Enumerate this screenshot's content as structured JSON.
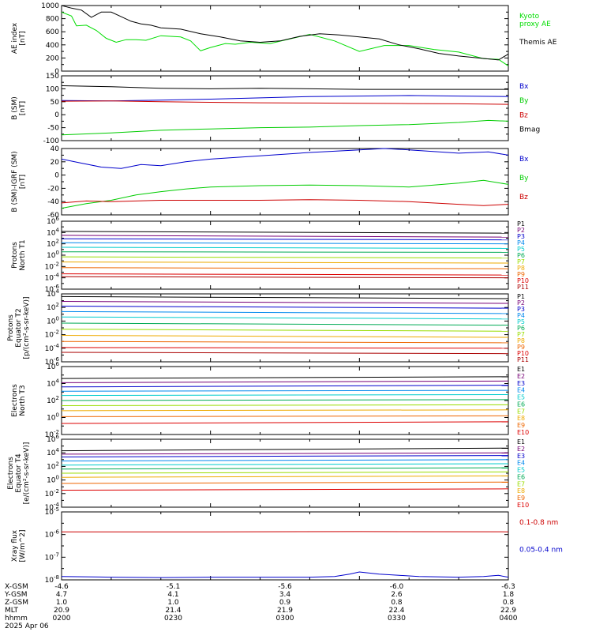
{
  "chart_data": [
    {
      "type": "line",
      "ylabel": "AE index\n[nT]",
      "ylim": [
        0,
        1000
      ],
      "yticks": [
        "1000",
        "800",
        "600",
        "400",
        "200",
        "0"
      ],
      "series": [
        {
          "name": "Kyoto\nproxy AE",
          "color": "#00dd00",
          "x": [
            0,
            2,
            3,
            5,
            7,
            9,
            11,
            13,
            15,
            17,
            20,
            22,
            24,
            26,
            28,
            30,
            33,
            35,
            38,
            42,
            46,
            50,
            55,
            60,
            65,
            70,
            75,
            80,
            85,
            88,
            90
          ],
          "values": [
            900,
            840,
            690,
            700,
            620,
            500,
            440,
            480,
            480,
            470,
            540,
            530,
            520,
            460,
            310,
            360,
            420,
            410,
            440,
            420,
            490,
            560,
            460,
            300,
            390,
            390,
            330,
            290,
            190,
            180,
            80
          ]
        },
        {
          "name": "Themis AE",
          "color": "#000000",
          "x": [
            0,
            2,
            4,
            6,
            8,
            10,
            12,
            14,
            16,
            18,
            20,
            24,
            28,
            32,
            36,
            40,
            44,
            48,
            52,
            56,
            60,
            64,
            68,
            72,
            76,
            80,
            84,
            88,
            90
          ],
          "values": [
            1000,
            960,
            930,
            820,
            900,
            900,
            830,
            760,
            720,
            700,
            660,
            640,
            570,
            520,
            460,
            440,
            460,
            530,
            570,
            550,
            520,
            490,
            400,
            340,
            270,
            230,
            200,
            170,
            260
          ]
        }
      ]
    },
    {
      "type": "line",
      "ylabel": "B (SM)\n[nT]",
      "ylim": [
        -100,
        150
      ],
      "yticks": [
        "150",
        "100",
        "50",
        "0",
        "-50",
        "-100"
      ],
      "series": [
        {
          "name": "Bx",
          "color": "#0000cc",
          "x": [
            0,
            10,
            20,
            30,
            40,
            50,
            60,
            70,
            80,
            90
          ],
          "values": [
            55,
            53,
            56,
            60,
            65,
            70,
            72,
            74,
            72,
            70
          ]
        },
        {
          "name": "By",
          "color": "#00cc00",
          "x": [
            0,
            10,
            20,
            30,
            40,
            50,
            60,
            70,
            80,
            86,
            90
          ],
          "values": [
            -78,
            -70,
            -60,
            -55,
            -50,
            -48,
            -42,
            -38,
            -30,
            -22,
            -25
          ]
        },
        {
          "name": "Bz",
          "color": "#cc0000",
          "x": [
            0,
            10,
            20,
            30,
            40,
            50,
            60,
            70,
            80,
            90
          ],
          "values": [
            52,
            53,
            50,
            48,
            46,
            45,
            44,
            43,
            42,
            40
          ]
        },
        {
          "name": "Bmag",
          "color": "#000000",
          "x": [
            0,
            10,
            20,
            30,
            40,
            50,
            60,
            70,
            80,
            90
          ],
          "values": [
            112,
            108,
            102,
            100,
            102,
            100,
            98,
            98,
            98,
            98
          ]
        }
      ]
    },
    {
      "type": "line",
      "ylabel": "B (SM)-IGRF (SM)\n[nT]",
      "ylim": [
        -60,
        40
      ],
      "yticks": [
        "40",
        "20",
        "0",
        "-20",
        "-40",
        "-60"
      ],
      "series": [
        {
          "name": "Bx",
          "color": "#0000cc",
          "x": [
            0,
            4,
            8,
            12,
            16,
            20,
            25,
            30,
            40,
            50,
            60,
            65,
            70,
            80,
            86,
            90
          ],
          "values": [
            24,
            18,
            12,
            10,
            16,
            14,
            20,
            24,
            29,
            34,
            38,
            40,
            38,
            33,
            35,
            30
          ]
        },
        {
          "name": "By",
          "color": "#00cc00",
          "x": [
            0,
            5,
            10,
            15,
            20,
            25,
            30,
            40,
            50,
            60,
            70,
            75,
            80,
            85,
            90
          ],
          "values": [
            -50,
            -43,
            -38,
            -30,
            -25,
            -21,
            -18,
            -16,
            -15,
            -16,
            -18,
            -15,
            -12,
            -8,
            -14
          ]
        },
        {
          "name": "Bz",
          "color": "#cc0000",
          "x": [
            0,
            5,
            10,
            20,
            30,
            40,
            50,
            60,
            70,
            80,
            85,
            90
          ],
          "values": [
            -42,
            -39,
            -40,
            -38,
            -38,
            -38,
            -37,
            -38,
            -40,
            -44,
            -46,
            -44
          ]
        }
      ]
    },
    {
      "type": "line",
      "ylabel": "Protons\nNorth T1",
      "yscale": "log",
      "ylim": [
        -6,
        6
      ],
      "yticks": [
        "10^6",
        "10^4",
        "10^2",
        "10^0",
        "10^-2",
        "10^-4",
        "10^-6"
      ],
      "series": [
        {
          "name": "P1",
          "color": "#000000",
          "x": [
            0,
            90
          ],
          "values": [
            4.2,
            3.9
          ]
        },
        {
          "name": "P2",
          "color": "#770077",
          "x": [
            0,
            90
          ],
          "values": [
            3.5,
            3.2
          ]
        },
        {
          "name": "P3",
          "color": "#0000cc",
          "x": [
            0,
            90
          ],
          "values": [
            2.9,
            2.7
          ]
        },
        {
          "name": "P4",
          "color": "#0088ee",
          "x": [
            0,
            90
          ],
          "values": [
            2.2,
            2.0
          ]
        },
        {
          "name": "P5",
          "color": "#00cccc",
          "x": [
            0,
            90
          ],
          "values": [
            1.4,
            1.2
          ]
        },
        {
          "name": "P6",
          "color": "#00aa55",
          "x": [
            0,
            90
          ],
          "values": [
            0.6,
            0.5
          ]
        },
        {
          "name": "P7",
          "color": "#99dd00",
          "x": [
            0,
            90
          ],
          "values": [
            -0.3,
            -0.5
          ]
        },
        {
          "name": "P8",
          "color": "#eeaa00",
          "x": [
            0,
            90
          ],
          "values": [
            -1.2,
            -1.4
          ]
        },
        {
          "name": "P9",
          "color": "#ee6600",
          "x": [
            0,
            90
          ],
          "values": [
            -2.2,
            -2.4
          ]
        },
        {
          "name": "P10",
          "color": "#dd0000",
          "x": [
            0,
            90
          ],
          "values": [
            -3.3,
            -3.5
          ]
        },
        {
          "name": "P11",
          "color": "#aa0000",
          "x": [
            0,
            90
          ],
          "values": [
            -3.8,
            -4.0
          ]
        }
      ]
    },
    {
      "type": "line",
      "ylabel": "Protons\nEquator T2\n[p/(cm²-s-sr-keV)]",
      "yscale": "log",
      "ylim": [
        -6,
        4
      ],
      "yticks": [
        "10^4",
        "10^2",
        "10^0",
        "10^-2",
        "10^-4",
        "10^-6"
      ],
      "series": [
        {
          "name": "P1",
          "color": "#000000",
          "x": [
            0,
            90
          ],
          "values": [
            3.6,
            3.3
          ]
        },
        {
          "name": "P2",
          "color": "#770077",
          "x": [
            0,
            90
          ],
          "values": [
            2.9,
            2.6
          ]
        },
        {
          "name": "P3",
          "color": "#0000cc",
          "x": [
            0,
            90
          ],
          "values": [
            2.2,
            1.9
          ]
        },
        {
          "name": "P4",
          "color": "#0088ee",
          "x": [
            0,
            90
          ],
          "values": [
            1.4,
            1.1
          ]
        },
        {
          "name": "P5",
          "color": "#00cccc",
          "x": [
            0,
            90
          ],
          "values": [
            0.6,
            0.3
          ]
        },
        {
          "name": "P6",
          "color": "#00aa55",
          "x": [
            0,
            90
          ],
          "values": [
            -0.3,
            -0.6
          ]
        },
        {
          "name": "P7",
          "color": "#99dd00",
          "x": [
            0,
            90
          ],
          "values": [
            -1.2,
            -1.5
          ]
        },
        {
          "name": "P8",
          "color": "#eeaa00",
          "x": [
            0,
            90
          ],
          "values": [
            -2.1,
            -2.4
          ]
        },
        {
          "name": "P9",
          "color": "#ee6600",
          "x": [
            0,
            90
          ],
          "values": [
            -3.0,
            -3.2
          ]
        },
        {
          "name": "P10",
          "color": "#dd0000",
          "x": [
            0,
            90
          ],
          "values": [
            -3.9,
            -4.0
          ]
        },
        {
          "name": "P11",
          "color": "#aa0000",
          "x": [
            0,
            90
          ],
          "values": [
            -4.6,
            -4.8
          ]
        }
      ]
    },
    {
      "type": "line",
      "ylabel": "Electrons\nNorth T3",
      "yscale": "log",
      "ylim": [
        -2,
        6
      ],
      "yticks": [
        "10^6",
        "10^4",
        "10^2",
        "10^0",
        "10^-2"
      ],
      "series": [
        {
          "name": "E1",
          "color": "#000000",
          "x": [
            0,
            90
          ],
          "values": [
            4.6,
            4.8
          ]
        },
        {
          "name": "E2",
          "color": "#770077",
          "x": [
            0,
            90
          ],
          "values": [
            4.1,
            4.3
          ]
        },
        {
          "name": "E3",
          "color": "#0000cc",
          "x": [
            0,
            90
          ],
          "values": [
            3.6,
            3.8
          ]
        },
        {
          "name": "E4",
          "color": "#0088ee",
          "x": [
            0,
            90
          ],
          "values": [
            3.1,
            3.2
          ]
        },
        {
          "name": "E5",
          "color": "#00cccc",
          "x": [
            0,
            90
          ],
          "values": [
            2.6,
            2.7
          ]
        },
        {
          "name": "E6",
          "color": "#00aa55",
          "x": [
            0,
            90
          ],
          "values": [
            2.0,
            2.1
          ]
        },
        {
          "name": "E7",
          "color": "#99dd00",
          "x": [
            0,
            90
          ],
          "values": [
            1.4,
            1.5
          ]
        },
        {
          "name": "E8",
          "color": "#eeaa00",
          "x": [
            0,
            90
          ],
          "values": [
            0.8,
            0.9
          ]
        },
        {
          "name": "E9",
          "color": "#ee6600",
          "x": [
            0,
            90
          ],
          "values": [
            0.1,
            0.2
          ]
        },
        {
          "name": "E10",
          "color": "#dd0000",
          "x": [
            0,
            90
          ],
          "values": [
            -0.7,
            -0.5
          ]
        }
      ]
    },
    {
      "type": "line",
      "ylabel": "Electrons\nEquator T4\n[e/(cm²-s-sr-keV)]",
      "yscale": "log",
      "ylim": [
        -4,
        6
      ],
      "yticks": [
        "10^6",
        "10^4",
        "10^2",
        "10^0",
        "10^-2",
        "10^-4"
      ],
      "series": [
        {
          "name": "E1",
          "color": "#000000",
          "x": [
            0,
            90
          ],
          "values": [
            4.3,
            4.7
          ]
        },
        {
          "name": "E2",
          "color": "#770077",
          "x": [
            0,
            90
          ],
          "values": [
            3.8,
            4.0
          ]
        },
        {
          "name": "E3",
          "color": "#0000cc",
          "x": [
            0,
            90
          ],
          "values": [
            3.4,
            3.6
          ]
        },
        {
          "name": "E4",
          "color": "#0088ee",
          "x": [
            0,
            90
          ],
          "values": [
            2.8,
            3.0
          ]
        },
        {
          "name": "E5",
          "color": "#00cccc",
          "x": [
            0,
            90
          ],
          "values": [
            2.2,
            2.4
          ]
        },
        {
          "name": "E6",
          "color": "#00aa55",
          "x": [
            0,
            90
          ],
          "values": [
            1.6,
            1.8
          ]
        },
        {
          "name": "E7",
          "color": "#99dd00",
          "x": [
            0,
            90
          ],
          "values": [
            1.0,
            1.2
          ]
        },
        {
          "name": "E8",
          "color": "#eeaa00",
          "x": [
            0,
            90
          ],
          "values": [
            0.4,
            0.6
          ]
        },
        {
          "name": "E9",
          "color": "#ee6600",
          "x": [
            0,
            90
          ],
          "values": [
            -0.5,
            -0.3
          ]
        },
        {
          "name": "E10",
          "color": "#dd0000",
          "x": [
            0,
            90
          ],
          "values": [
            -1.5,
            -1.3
          ]
        }
      ]
    },
    {
      "type": "line",
      "ylabel": "Xray flux\n[W/m^2]",
      "yscale": "log",
      "ylim": [
        -8,
        -5
      ],
      "yticks": [
        "10^-5",
        "10^-6",
        "10^-7",
        "10^-8"
      ],
      "series": [
        {
          "name": "0.1-0.8 nm",
          "color": "#cc0000",
          "x": [
            0,
            30,
            60,
            90
          ],
          "values": [
            -5.88,
            -5.88,
            -5.87,
            -5.88
          ]
        },
        {
          "name": "0.05-0.4 nm",
          "color": "#0000cc",
          "x": [
            0,
            10,
            20,
            30,
            40,
            50,
            55,
            58,
            60,
            64,
            68,
            72,
            80,
            85,
            88,
            90
          ],
          "values": [
            -7.85,
            -7.88,
            -7.9,
            -7.88,
            -7.88,
            -7.88,
            -7.85,
            -7.75,
            -7.65,
            -7.75,
            -7.8,
            -7.85,
            -7.88,
            -7.85,
            -7.8,
            -7.88
          ]
        }
      ]
    }
  ],
  "x_axis": {
    "rows": [
      {
        "label": "X-GSM",
        "values": [
          "-4.6",
          "-5.1",
          "-5.6",
          "-6.0",
          "-6.3"
        ]
      },
      {
        "label": "Y-GSM",
        "values": [
          "4.7",
          "4.1",
          "3.4",
          "2.6",
          "1.8"
        ]
      },
      {
        "label": "Z-GSM",
        "values": [
          "1.0",
          "1.0",
          "0.9",
          "0.8",
          "0.8"
        ]
      },
      {
        "label": "MLT",
        "values": [
          "20.9",
          "21.4",
          "21.9",
          "22.4",
          "22.9"
        ]
      },
      {
        "label": "hhmm",
        "values": [
          "0200",
          "0230",
          "0300",
          "0330",
          "0400"
        ]
      }
    ],
    "date": "2025 Apr 06"
  }
}
